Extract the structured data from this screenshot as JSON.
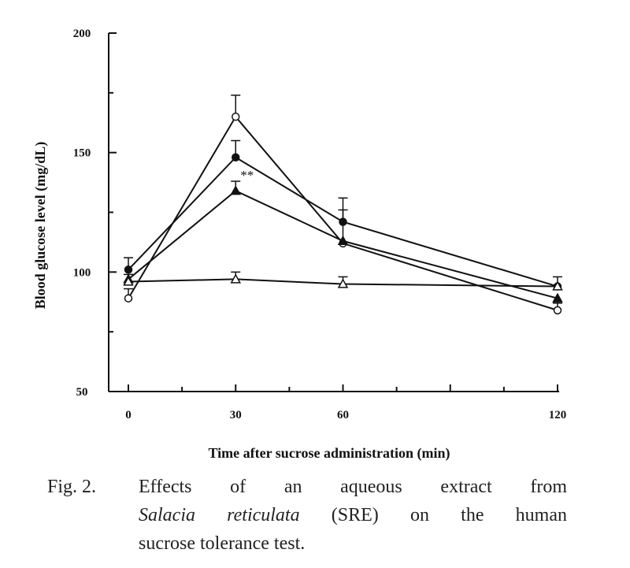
{
  "chart_data": {
    "type": "line",
    "x_ticks": [
      "0",
      "30",
      "60",
      "120"
    ],
    "y_ticks": [
      "200",
      "150",
      "100",
      "50"
    ],
    "xlabel": "Time after sucrose administration (min)",
    "ylabel": "Blood glucose level (mg/dL)",
    "xlim": [
      0,
      120
    ],
    "ylim": [
      50,
      200
    ],
    "grid": false,
    "series": [
      {
        "marker": "filled-circle",
        "x": [
          0,
          30,
          60,
          120
        ],
        "y": [
          101,
          148,
          121,
          94
        ],
        "err": [
          5,
          7,
          10,
          4
        ]
      },
      {
        "marker": "open-circle",
        "x": [
          0,
          30,
          60,
          120
        ],
        "y": [
          89,
          165,
          112,
          84
        ],
        "err": [
          4,
          9,
          14,
          3
        ]
      },
      {
        "marker": "filled-triangle",
        "x": [
          0,
          30,
          60,
          120
        ],
        "y": [
          97,
          134,
          113,
          89
        ],
        "err": [
          2,
          4,
          0,
          0
        ]
      },
      {
        "marker": "open-triangle",
        "x": [
          0,
          30,
          60,
          120
        ],
        "y": [
          96,
          97,
          95,
          94
        ],
        "err": [
          0,
          3,
          3,
          0
        ]
      }
    ],
    "annotations": [
      {
        "text": "**",
        "x": 30,
        "y": 136
      }
    ]
  },
  "caption": {
    "label": "Fig. 2.",
    "line1": "Effects of an aqueous extract from",
    "species": "Salacia reticulata",
    "line2_rest": " (SRE) on the human",
    "line3": "sucrose tolerance test."
  }
}
